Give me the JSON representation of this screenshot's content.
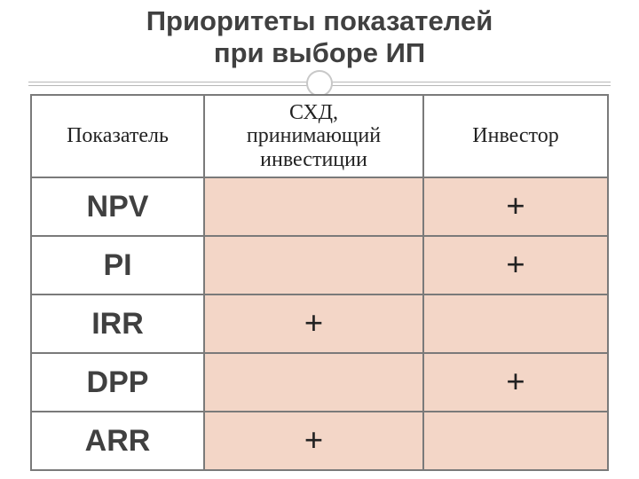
{
  "title_line1": "Приоритеты показателей",
  "title_line2": "при выборе ИП",
  "headers": {
    "indicator": "Показатель",
    "entity_line1": "СХД,",
    "entity_line2": "принимающий",
    "entity_line3": "инвестиции",
    "investor": "Инвестор"
  },
  "rows": [
    {
      "indicator": "NPV",
      "entity": "",
      "investor": "+"
    },
    {
      "indicator": "PI",
      "entity": "",
      "investor": "+"
    },
    {
      "indicator": "IRR",
      "entity": "+",
      "investor": ""
    },
    {
      "indicator": "DPP",
      "entity": "",
      "investor": "+"
    },
    {
      "indicator": "ARR",
      "entity": "+",
      "investor": ""
    }
  ],
  "colors": {
    "cell_bg": "#f3d6c7",
    "border": "#7a7a7a",
    "title_text": "#404040",
    "decor_line": "#b8b8b8"
  },
  "fonts": {
    "title_size": 31,
    "header_size": 24,
    "indicator_size": 34,
    "plus_size": 38,
    "title_family": "Arial",
    "header_family": "Times New Roman"
  }
}
